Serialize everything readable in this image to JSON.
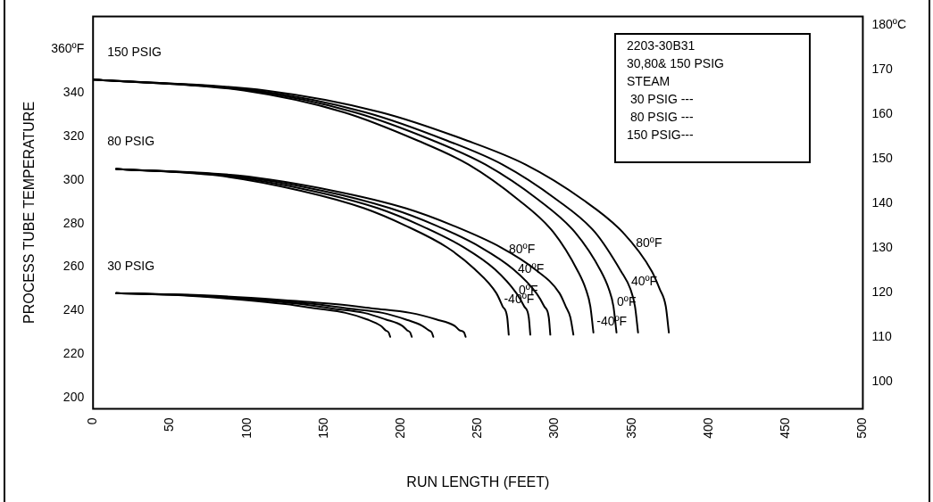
{
  "chart_data": {
    "type": "line",
    "xlabel": "RUN LENGTH (FEET)",
    "ylabel": "PROCESS TUBE TEMPERATURE",
    "xlim": [
      0,
      500
    ],
    "xticks": [
      0,
      50,
      100,
      150,
      200,
      250,
      300,
      350,
      400,
      450,
      500
    ],
    "ylim": [
      195,
      375
    ],
    "yticks": [
      200,
      220,
      240,
      260,
      280,
      300,
      320,
      340,
      {
        "value": 360,
        "label": "360ºF"
      }
    ],
    "y2lim": [
      94,
      182
    ],
    "y2ticks": [
      100,
      110,
      120,
      130,
      140,
      150,
      160,
      170,
      {
        "value": 180,
        "label": "180ºC"
      }
    ],
    "grid": false,
    "legend": false,
    "marker": "none",
    "line_style": "solid",
    "series": [
      {
        "color": "#000000",
        "x": [
          15,
          58,
          97,
          125,
          145,
          164,
          178,
          187,
          190,
          192,
          193
        ],
        "values": [
          248,
          247,
          245,
          243,
          241,
          239,
          236,
          233,
          231,
          230,
          228
        ]
      },
      {
        "color": "#000000",
        "x": [
          15,
          62,
          104,
          135,
          155,
          176,
          190,
          201,
          204,
          206,
          207
        ],
        "values": [
          248,
          247,
          245,
          243,
          241,
          239,
          236,
          233,
          231,
          230,
          228
        ]
      },
      {
        "color": "#000000",
        "x": [
          15,
          66,
          111,
          144,
          166,
          188,
          203,
          214,
          218,
          220,
          221
        ],
        "values": [
          248,
          247,
          245,
          243,
          241,
          239,
          236,
          233,
          231,
          230,
          228
        ]
      },
      {
        "color": "#000000",
        "x": [
          15,
          73,
          121,
          157,
          182,
          206,
          223,
          235,
          238,
          241,
          242
        ],
        "values": [
          248,
          247,
          245,
          243,
          241,
          239,
          236,
          233,
          231,
          230,
          228
        ]
      },
      {
        "name": "-40ºF",
        "color": "#000000",
        "x": [
          15,
          81,
          135,
          176,
          203,
          230,
          248,
          262,
          266,
          269,
          270
        ],
        "values": [
          305,
          302,
          295,
          287,
          279,
          269,
          259,
          248,
          242,
          237,
          229
        ]
      },
      {
        "name": "0ºF",
        "color": "#000000",
        "x": [
          15,
          85,
          142,
          185,
          213,
          241,
          261,
          275,
          280,
          283,
          284
        ],
        "values": [
          305,
          302,
          295,
          287,
          279,
          269,
          259,
          248,
          242,
          237,
          229
        ]
      },
      {
        "name": "40ºF",
        "color": "#000000",
        "x": [
          15,
          89,
          149,
          193,
          223,
          252,
          273,
          288,
          293,
          296,
          297
        ],
        "values": [
          305,
          302,
          295,
          287,
          279,
          269,
          259,
          248,
          242,
          237,
          229
        ]
      },
      {
        "name": "80ºF",
        "color": "#000000",
        "x": [
          15,
          94,
          156,
          203,
          234,
          265,
          287,
          303,
          307,
          310,
          312
        ],
        "values": [
          305,
          302,
          295,
          287,
          279,
          269,
          259,
          248,
          242,
          237,
          229
        ]
      },
      {
        "name": "-40ºF",
        "color": "#000000",
        "x": [
          0,
          98,
          163,
          211,
          244,
          276,
          299,
          315,
          320,
          323,
          325
        ],
        "values": [
          346,
          341,
          331,
          318,
          307,
          291,
          276,
          258,
          250,
          242,
          230
        ]
      },
      {
        "name": "0ºF",
        "color": "#000000",
        "x": [
          0,
          102,
          170,
          221,
          255,
          289,
          313,
          330,
          335,
          338,
          340
        ],
        "values": [
          346,
          341,
          331,
          318,
          307,
          291,
          276,
          258,
          250,
          242,
          230
        ]
      },
      {
        "name": "40ºF",
        "color": "#000000",
        "x": [
          0,
          106,
          177,
          230,
          266,
          301,
          326,
          343,
          349,
          352,
          354
        ],
        "values": [
          346,
          341,
          331,
          318,
          307,
          291,
          276,
          258,
          250,
          242,
          230
        ]
      },
      {
        "name": "80ºF",
        "color": "#000000",
        "x": [
          0,
          112,
          187,
          243,
          281,
          318,
          344,
          363,
          368,
          372,
          374
        ],
        "values": [
          346,
          341,
          331,
          318,
          307,
          291,
          276,
          258,
          250,
          242,
          230
        ]
      }
    ],
    "annotations": [
      "150 PSIG",
      "80 PSIG",
      "30 PSIG",
      "2203-30B31",
      "30,80& 150 PSIG",
      "STEAM",
      " 30 PSIG ---",
      " 80 PSIG ---",
      "150 PSIG---"
    ]
  }
}
